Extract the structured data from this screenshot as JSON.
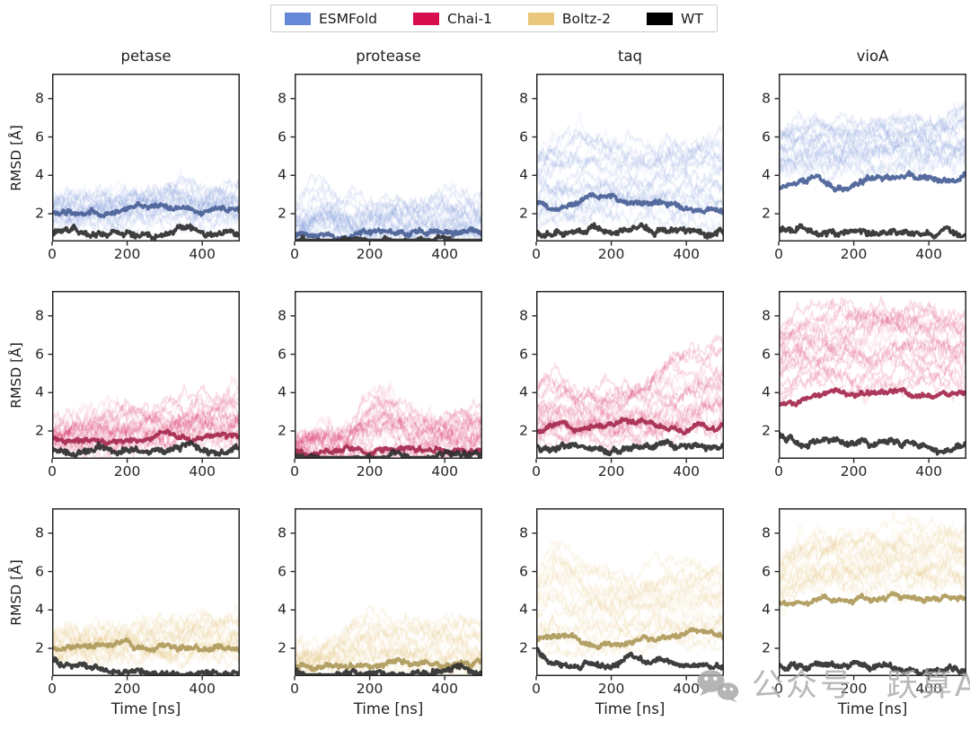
{
  "legend": {
    "items": [
      {
        "label": "ESMFold",
        "color": "#6787d7"
      },
      {
        "label": "Chai-1",
        "color": "#d70f4e"
      },
      {
        "label": "Boltz-2",
        "color": "#e9c87e"
      },
      {
        "label": "WT",
        "color": "#000000"
      }
    ]
  },
  "watermark": {
    "icon": "wechat-icon",
    "text1": "公众号",
    "text2": "跃算AI",
    "color": "#ababab"
  },
  "chart_data": {
    "type": "line",
    "title": "",
    "xlabel": "Time [ns]",
    "ylabel": "RMSD [Å]",
    "col_titles": [
      "petase",
      "protease",
      "taq",
      "vioA"
    ],
    "row_series": [
      "ESMFold",
      "Chai-1",
      "Boltz-2"
    ],
    "x_ticks": [
      0,
      200,
      400
    ],
    "y_ticks": [
      2,
      4,
      6,
      8
    ],
    "xlim": [
      0,
      500
    ],
    "ylim": [
      0.55,
      9.3
    ],
    "grid": false,
    "legend_position": "top-center",
    "x_control": [
      0,
      50,
      100,
      150,
      200,
      250,
      300,
      350,
      400,
      450,
      500
    ],
    "series_styles": [
      {
        "name": "ESMFold",
        "band_color": "#6787d7",
        "mean_color": "#4d6399"
      },
      {
        "name": "Chai-1",
        "band_color": "#d70f4e",
        "mean_color": "#a82d52"
      },
      {
        "name": "Boltz-2",
        "band_color": "#e2bc6e",
        "mean_color": "#b09c5e"
      }
    ],
    "wt_color": "#2f2f2f",
    "panels": [
      {
        "row": 0,
        "col": 0,
        "band_low": [
          1.6,
          1.55,
          1.55,
          1.5,
          1.55,
          1.6,
          1.6,
          1.55,
          1.6,
          1.6,
          1.6
        ],
        "band_high": [
          2.9,
          3.0,
          3.0,
          3.0,
          3.1,
          3.2,
          3.4,
          3.6,
          3.3,
          3.4,
          3.5
        ],
        "mean": [
          2.0,
          2.1,
          2.1,
          2.1,
          2.2,
          2.3,
          2.45,
          2.2,
          2.1,
          2.2,
          2.2
        ],
        "wt": [
          1.0,
          1.0,
          1.05,
          1.0,
          1.0,
          1.0,
          1.05,
          1.1,
          1.0,
          1.0,
          1.0
        ]
      },
      {
        "row": 0,
        "col": 1,
        "band_low": [
          0.7,
          0.7,
          0.7,
          0.7,
          0.7,
          0.7,
          0.7,
          0.7,
          0.7,
          0.7,
          0.7
        ],
        "band_high": [
          2.2,
          3.3,
          3.2,
          2.4,
          2.4,
          2.6,
          2.6,
          2.5,
          3.0,
          2.9,
          2.8
        ],
        "mean": [
          0.95,
          1.0,
          1.0,
          0.95,
          1.0,
          1.0,
          1.0,
          1.0,
          1.05,
          1.0,
          1.0
        ],
        "wt": [
          0.65,
          0.6,
          0.6,
          0.6,
          0.6,
          0.6,
          0.6,
          0.6,
          0.6,
          0.6,
          0.6
        ]
      },
      {
        "row": 0,
        "col": 2,
        "band_low": [
          1.5,
          1.6,
          1.6,
          1.6,
          1.6,
          1.6,
          1.7,
          1.6,
          1.6,
          1.6,
          1.7
        ],
        "band_high": [
          5.2,
          5.6,
          5.8,
          6.0,
          5.6,
          5.8,
          5.5,
          6.0,
          5.6,
          5.8,
          6.2
        ],
        "mean": [
          2.6,
          2.3,
          2.5,
          2.9,
          3.0,
          2.5,
          2.4,
          2.5,
          2.3,
          2.4,
          2.2
        ],
        "wt": [
          1.1,
          1.0,
          1.1,
          1.2,
          1.1,
          1.3,
          1.1,
          1.0,
          1.1,
          1.0,
          1.1
        ]
      },
      {
        "row": 0,
        "col": 3,
        "band_low": [
          4.0,
          4.3,
          4.4,
          4.2,
          4.3,
          4.4,
          4.5,
          4.5,
          4.6,
          4.6,
          4.8
        ],
        "band_high": [
          6.4,
          6.9,
          6.8,
          6.6,
          6.7,
          6.8,
          6.9,
          7.1,
          6.8,
          7.0,
          7.8
        ],
        "mean": [
          3.4,
          3.6,
          3.8,
          3.2,
          3.5,
          3.9,
          3.8,
          3.8,
          3.9,
          3.8,
          3.9
        ],
        "wt": [
          1.1,
          1.2,
          1.1,
          1.0,
          1.0,
          1.05,
          1.1,
          1.0,
          1.0,
          1.0,
          1.05
        ]
      },
      {
        "row": 1,
        "col": 0,
        "band_low": [
          1.3,
          1.3,
          1.3,
          1.3,
          1.3,
          1.35,
          1.35,
          1.3,
          1.35,
          1.4,
          1.4
        ],
        "band_high": [
          2.1,
          2.3,
          2.6,
          2.8,
          2.9,
          3.0,
          3.1,
          3.3,
          3.5,
          3.5,
          3.6
        ],
        "mean": [
          1.6,
          1.55,
          1.6,
          1.6,
          1.6,
          1.6,
          1.65,
          1.6,
          1.6,
          1.65,
          1.6
        ],
        "wt": [
          1.05,
          1.0,
          1.0,
          1.0,
          1.0,
          1.05,
          1.0,
          1.2,
          1.05,
          1.0,
          1.0
        ]
      },
      {
        "row": 1,
        "col": 1,
        "band_low": [
          0.7,
          0.7,
          0.7,
          0.7,
          0.7,
          0.7,
          0.7,
          0.7,
          0.7,
          0.7,
          0.7
        ],
        "band_high": [
          1.6,
          1.9,
          2.0,
          2.2,
          3.6,
          3.9,
          3.0,
          2.6,
          2.6,
          2.8,
          2.8
        ],
        "mean": [
          1.0,
          1.0,
          0.95,
          1.0,
          1.0,
          1.0,
          1.0,
          1.0,
          1.05,
          1.0,
          1.05
        ],
        "wt": [
          0.65,
          0.6,
          0.6,
          0.6,
          0.6,
          0.6,
          0.65,
          0.6,
          0.6,
          0.6,
          0.6
        ]
      },
      {
        "row": 1,
        "col": 2,
        "band_low": [
          1.5,
          1.5,
          1.5,
          1.5,
          1.5,
          1.6,
          1.6,
          1.6,
          1.7,
          1.7,
          1.8
        ],
        "band_high": [
          4.3,
          4.8,
          4.2,
          4.0,
          4.2,
          4.5,
          4.6,
          5.6,
          5.8,
          6.2,
          6.5
        ],
        "mean": [
          2.0,
          2.3,
          2.2,
          2.3,
          2.3,
          2.4,
          2.5,
          2.2,
          2.1,
          2.2,
          2.2
        ],
        "wt": [
          1.2,
          1.0,
          1.1,
          1.0,
          1.1,
          1.0,
          1.3,
          1.2,
          1.1,
          1.0,
          1.1
        ]
      },
      {
        "row": 1,
        "col": 3,
        "band_low": [
          3.6,
          4.2,
          4.3,
          4.4,
          4.3,
          4.4,
          4.4,
          4.5,
          4.4,
          4.4,
          4.3
        ],
        "band_high": [
          7.6,
          8.0,
          8.2,
          8.4,
          8.3,
          8.5,
          8.4,
          8.6,
          8.5,
          8.4,
          8.3
        ],
        "mean": [
          3.3,
          3.7,
          3.8,
          3.9,
          3.8,
          4.0,
          4.1,
          4.0,
          3.9,
          3.9,
          3.85
        ],
        "wt": [
          1.9,
          1.3,
          1.4,
          1.6,
          1.3,
          1.2,
          1.3,
          1.25,
          1.1,
          1.2,
          1.3
        ]
      },
      {
        "row": 2,
        "col": 0,
        "band_low": [
          1.5,
          1.5,
          1.5,
          1.5,
          1.55,
          1.5,
          1.55,
          1.6,
          1.6,
          1.6,
          1.6
        ],
        "band_high": [
          2.6,
          2.8,
          2.9,
          3.0,
          3.1,
          3.0,
          3.0,
          3.3,
          3.5,
          3.4,
          3.4
        ],
        "mean": [
          2.0,
          2.1,
          2.05,
          2.1,
          2.1,
          2.0,
          2.0,
          2.0,
          2.0,
          2.1,
          2.0
        ],
        "wt": [
          1.5,
          0.9,
          0.8,
          0.75,
          0.7,
          0.7,
          0.75,
          0.7,
          0.7,
          0.65,
          0.7
        ]
      },
      {
        "row": 2,
        "col": 1,
        "band_low": [
          0.75,
          0.75,
          0.75,
          0.75,
          0.75,
          0.75,
          0.75,
          0.75,
          0.75,
          0.75,
          0.75
        ],
        "band_high": [
          2.2,
          1.9,
          2.3,
          3.5,
          3.9,
          3.3,
          3.3,
          3.2,
          3.3,
          3.3,
          3.2
        ],
        "mean": [
          1.0,
          1.05,
          1.1,
          1.15,
          1.1,
          1.1,
          1.15,
          1.2,
          1.2,
          1.25,
          1.2
        ],
        "wt": [
          0.7,
          0.65,
          0.65,
          0.65,
          0.7,
          0.7,
          0.65,
          0.7,
          0.7,
          0.65,
          0.7
        ]
      },
      {
        "row": 2,
        "col": 2,
        "band_low": [
          1.7,
          1.8,
          1.8,
          1.8,
          1.8,
          1.9,
          1.9,
          2.0,
          2.1,
          2.2,
          2.3
        ],
        "band_high": [
          5.5,
          7.6,
          6.5,
          6.0,
          5.8,
          5.6,
          5.8,
          6.0,
          6.2,
          6.4,
          6.3
        ],
        "mean": [
          2.4,
          2.6,
          2.4,
          2.2,
          2.2,
          2.3,
          2.4,
          2.5,
          2.8,
          2.9,
          2.7
        ],
        "wt": [
          2.0,
          1.2,
          1.1,
          1.2,
          1.1,
          1.3,
          1.2,
          1.3,
          1.1,
          1.0,
          1.1
        ]
      },
      {
        "row": 2,
        "col": 3,
        "band_low": [
          4.0,
          4.9,
          5.0,
          5.1,
          5.0,
          5.1,
          5.0,
          5.2,
          5.3,
          5.2,
          5.2
        ],
        "band_high": [
          6.4,
          7.4,
          7.7,
          7.9,
          7.8,
          7.7,
          7.9,
          8.0,
          7.9,
          8.0,
          7.9
        ],
        "mean": [
          4.5,
          4.4,
          4.4,
          4.5,
          4.5,
          4.6,
          4.8,
          4.6,
          4.6,
          4.7,
          4.6
        ],
        "wt": [
          1.1,
          1.0,
          1.0,
          0.95,
          1.0,
          1.0,
          1.05,
          0.9,
          0.9,
          0.85,
          0.9
        ]
      }
    ]
  }
}
